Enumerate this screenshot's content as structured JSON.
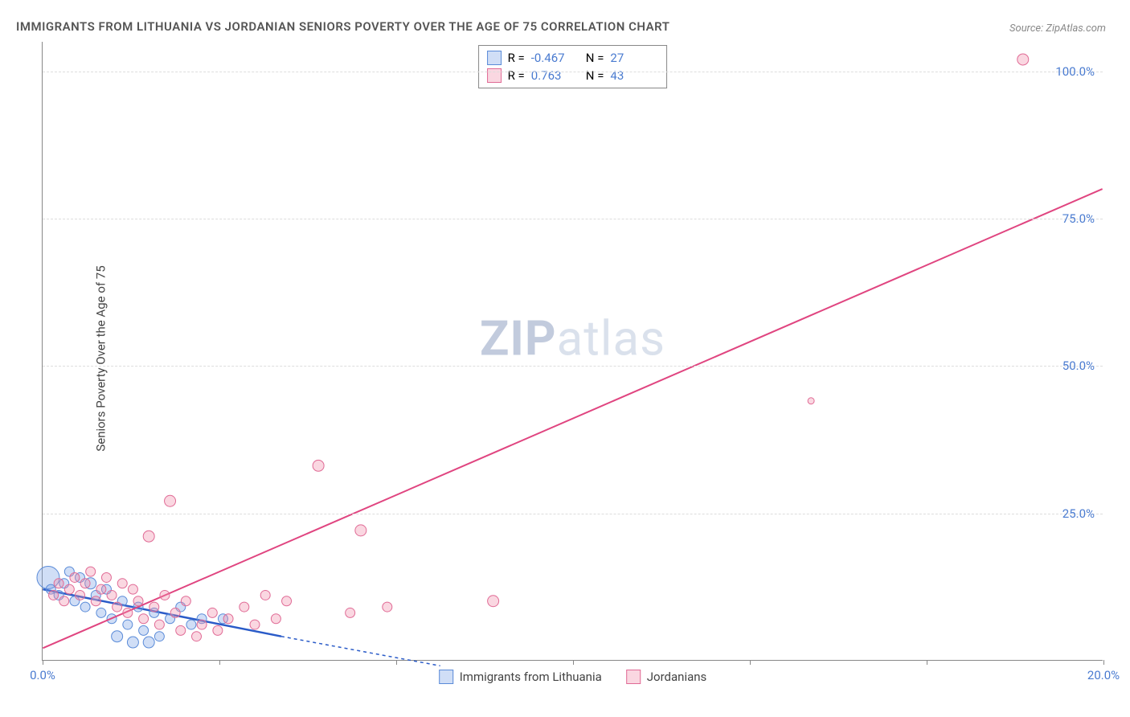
{
  "title": "IMMIGRANTS FROM LITHUANIA VS JORDANIAN SENIORS POVERTY OVER THE AGE OF 75 CORRELATION CHART",
  "source": "Source: ZipAtlas.com",
  "y_axis_label": "Seniors Poverty Over the Age of 75",
  "watermark_bold": "ZIP",
  "watermark_light": "atlas",
  "chart": {
    "type": "scatter",
    "xlim": [
      0,
      20
    ],
    "ylim": [
      0,
      105
    ],
    "x_ticks": [
      0,
      3.33,
      6.67,
      10,
      13.33,
      16.67,
      20
    ],
    "x_tick_labels": {
      "0": "0.0%",
      "20": "20.0%"
    },
    "y_ticks": [
      25,
      50,
      75,
      100
    ],
    "y_tick_labels": {
      "25": "25.0%",
      "50": "50.0%",
      "75": "75.0%",
      "100": "100.0%"
    },
    "background_color": "#ffffff",
    "grid_color": "#dddddd",
    "series": [
      {
        "key": "lithuania",
        "label": "Immigrants from Lithuania",
        "color_fill": "rgba(120,160,230,0.35)",
        "color_stroke": "#5a8bd8",
        "r_value": "-0.467",
        "n_value": "27",
        "trend": {
          "x1": 0,
          "y1": 12,
          "x2": 4.5,
          "y2": 4,
          "dash_to_x": 7.5,
          "dash_to_y": -1,
          "color": "#2a5bc8",
          "width": 2.5
        },
        "points": [
          {
            "x": 0.1,
            "y": 14,
            "r": 14
          },
          {
            "x": 0.15,
            "y": 12,
            "r": 6
          },
          {
            "x": 0.3,
            "y": 11,
            "r": 6
          },
          {
            "x": 0.4,
            "y": 13,
            "r": 6
          },
          {
            "x": 0.5,
            "y": 15,
            "r": 6
          },
          {
            "x": 0.6,
            "y": 10,
            "r": 6
          },
          {
            "x": 0.7,
            "y": 14,
            "r": 6
          },
          {
            "x": 0.8,
            "y": 9,
            "r": 6
          },
          {
            "x": 0.9,
            "y": 13,
            "r": 7
          },
          {
            "x": 1.0,
            "y": 11,
            "r": 6
          },
          {
            "x": 1.1,
            "y": 8,
            "r": 6
          },
          {
            "x": 1.2,
            "y": 12,
            "r": 6
          },
          {
            "x": 1.3,
            "y": 7,
            "r": 6
          },
          {
            "x": 1.4,
            "y": 4,
            "r": 7
          },
          {
            "x": 1.5,
            "y": 10,
            "r": 6
          },
          {
            "x": 1.6,
            "y": 6,
            "r": 6
          },
          {
            "x": 1.7,
            "y": 3,
            "r": 7
          },
          {
            "x": 1.8,
            "y": 9,
            "r": 6
          },
          {
            "x": 1.9,
            "y": 5,
            "r": 6
          },
          {
            "x": 2.0,
            "y": 3,
            "r": 7
          },
          {
            "x": 2.1,
            "y": 8,
            "r": 6
          },
          {
            "x": 2.2,
            "y": 4,
            "r": 6
          },
          {
            "x": 2.4,
            "y": 7,
            "r": 6
          },
          {
            "x": 2.6,
            "y": 9,
            "r": 6
          },
          {
            "x": 2.8,
            "y": 6,
            "r": 6
          },
          {
            "x": 3.0,
            "y": 7,
            "r": 6
          },
          {
            "x": 3.4,
            "y": 7,
            "r": 6
          }
        ]
      },
      {
        "key": "jordanian",
        "label": "Jordanians",
        "color_fill": "rgba(240,140,170,0.35)",
        "color_stroke": "#e06a95",
        "r_value": "0.763",
        "n_value": "43",
        "trend": {
          "x1": 0,
          "y1": 2,
          "x2": 20,
          "y2": 80,
          "color": "#e04580",
          "width": 2
        },
        "points": [
          {
            "x": 0.2,
            "y": 11,
            "r": 6
          },
          {
            "x": 0.3,
            "y": 13,
            "r": 6
          },
          {
            "x": 0.4,
            "y": 10,
            "r": 6
          },
          {
            "x": 0.5,
            "y": 12,
            "r": 6
          },
          {
            "x": 0.6,
            "y": 14,
            "r": 6
          },
          {
            "x": 0.7,
            "y": 11,
            "r": 6
          },
          {
            "x": 0.8,
            "y": 13,
            "r": 6
          },
          {
            "x": 0.9,
            "y": 15,
            "r": 6
          },
          {
            "x": 1.0,
            "y": 10,
            "r": 6
          },
          {
            "x": 1.1,
            "y": 12,
            "r": 6
          },
          {
            "x": 1.2,
            "y": 14,
            "r": 6
          },
          {
            "x": 1.3,
            "y": 11,
            "r": 6
          },
          {
            "x": 1.4,
            "y": 9,
            "r": 6
          },
          {
            "x": 1.5,
            "y": 13,
            "r": 6
          },
          {
            "x": 1.6,
            "y": 8,
            "r": 6
          },
          {
            "x": 1.7,
            "y": 12,
            "r": 6
          },
          {
            "x": 1.8,
            "y": 10,
            "r": 6
          },
          {
            "x": 1.9,
            "y": 7,
            "r": 6
          },
          {
            "x": 2.0,
            "y": 21,
            "r": 7
          },
          {
            "x": 2.1,
            "y": 9,
            "r": 6
          },
          {
            "x": 2.2,
            "y": 6,
            "r": 6
          },
          {
            "x": 2.3,
            "y": 11,
            "r": 6
          },
          {
            "x": 2.4,
            "y": 27,
            "r": 7
          },
          {
            "x": 2.5,
            "y": 8,
            "r": 6
          },
          {
            "x": 2.6,
            "y": 5,
            "r": 6
          },
          {
            "x": 2.7,
            "y": 10,
            "r": 6
          },
          {
            "x": 2.9,
            "y": 4,
            "r": 6
          },
          {
            "x": 3.0,
            "y": 6,
            "r": 6
          },
          {
            "x": 3.2,
            "y": 8,
            "r": 6
          },
          {
            "x": 3.3,
            "y": 5,
            "r": 6
          },
          {
            "x": 3.5,
            "y": 7,
            "r": 6
          },
          {
            "x": 3.8,
            "y": 9,
            "r": 6
          },
          {
            "x": 4.0,
            "y": 6,
            "r": 6
          },
          {
            "x": 4.2,
            "y": 11,
            "r": 6
          },
          {
            "x": 4.4,
            "y": 7,
            "r": 6
          },
          {
            "x": 4.6,
            "y": 10,
            "r": 6
          },
          {
            "x": 5.2,
            "y": 33,
            "r": 7
          },
          {
            "x": 5.8,
            "y": 8,
            "r": 6
          },
          {
            "x": 6.0,
            "y": 22,
            "r": 7
          },
          {
            "x": 6.5,
            "y": 9,
            "r": 6
          },
          {
            "x": 8.5,
            "y": 10,
            "r": 7
          },
          {
            "x": 18.5,
            "y": 102,
            "r": 7
          },
          {
            "x": 14.5,
            "y": 44,
            "r": 4
          }
        ]
      }
    ]
  },
  "colors": {
    "title": "#555555",
    "axis_label": "#4a7bd0",
    "text": "#444444"
  }
}
